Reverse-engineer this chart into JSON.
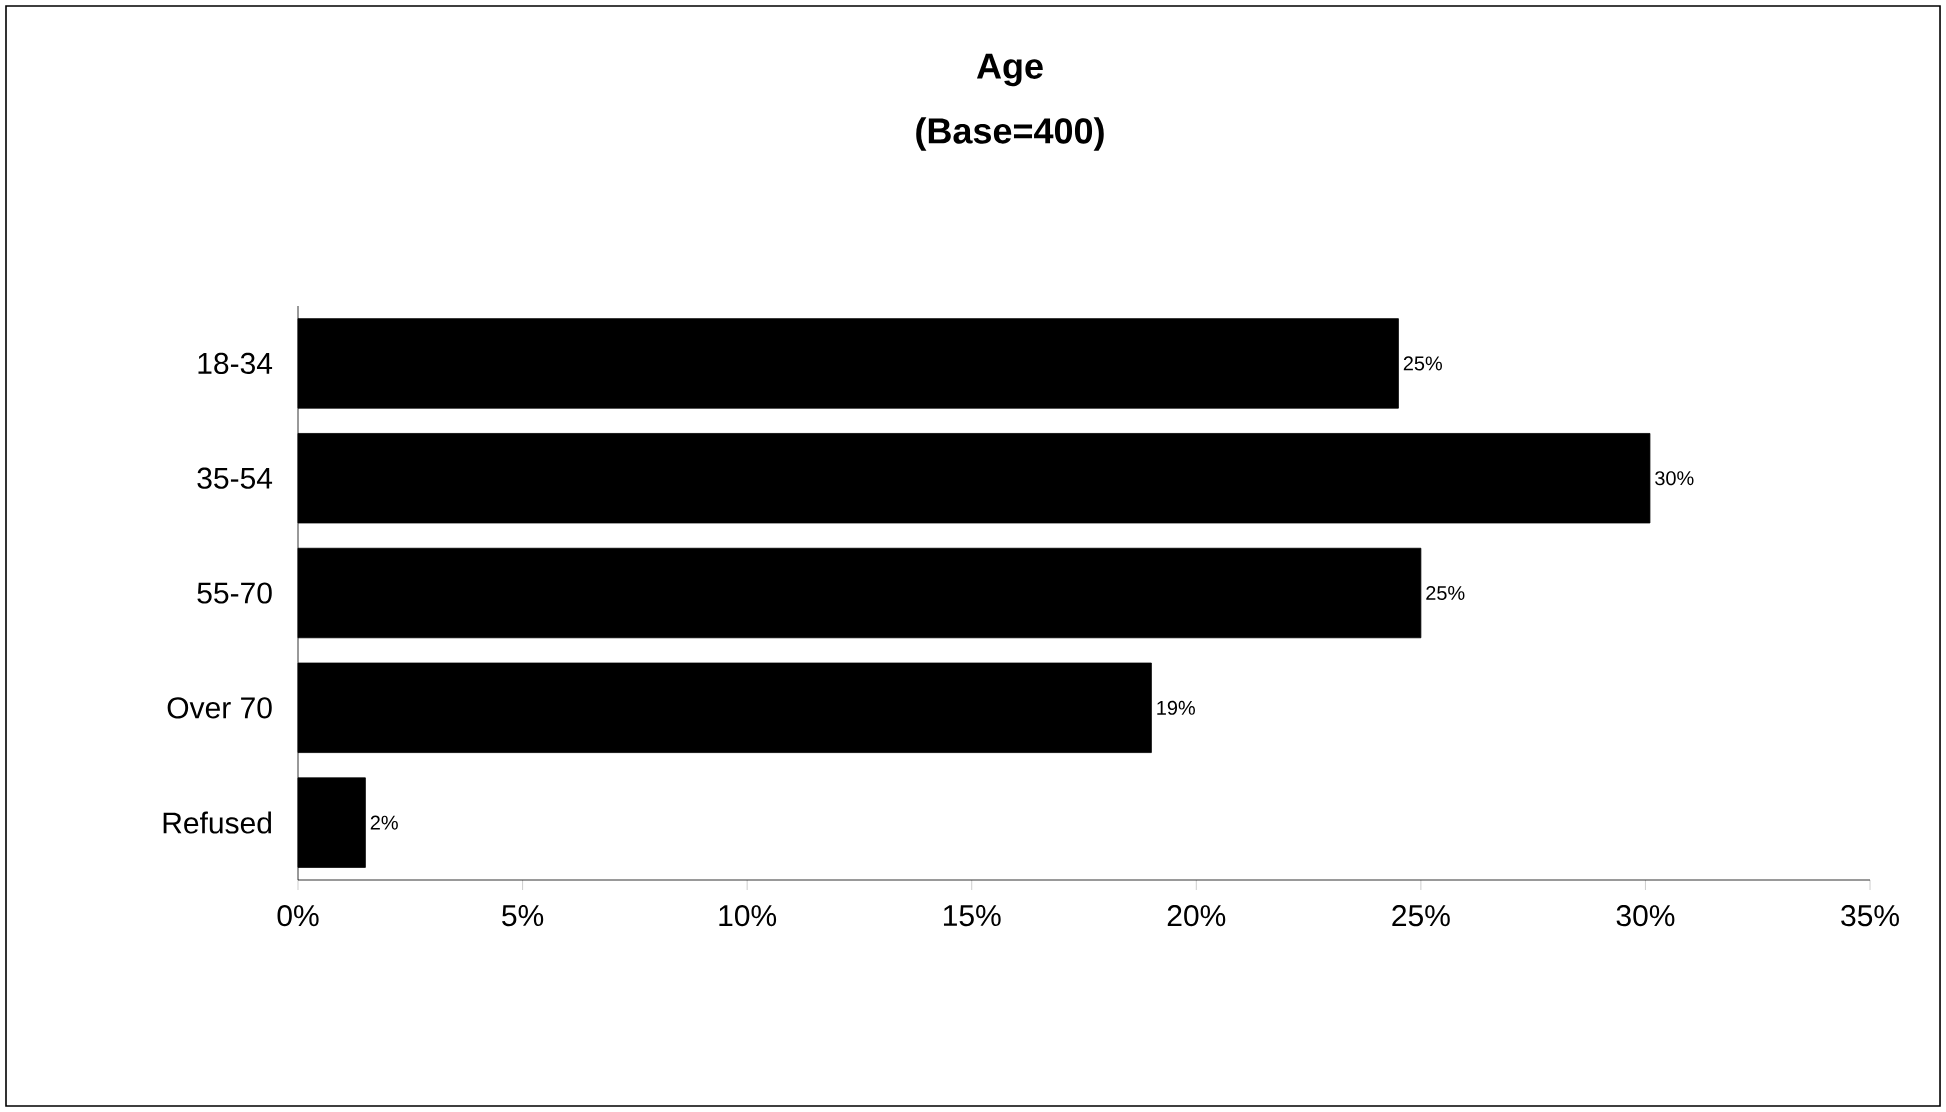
{
  "chart_data": {
    "type": "bar",
    "orientation": "horizontal",
    "title": "Age",
    "subtitle": "(Base=400)",
    "categories": [
      "18-34",
      "35-54",
      "55-70",
      "Over 70",
      "Refused"
    ],
    "values": [
      24.5,
      30.1,
      25.0,
      19.0,
      1.5
    ],
    "value_labels": [
      "25%",
      "30%",
      "25%",
      "19%",
      "2%"
    ],
    "color": "#000000",
    "xlim": [
      0,
      35
    ],
    "xticks": [
      {
        "value": 0,
        "label": "0%"
      },
      {
        "value": 5,
        "label": "5%"
      },
      {
        "value": 10,
        "label": "10%"
      },
      {
        "value": 15,
        "label": "15%"
      },
      {
        "value": 20,
        "label": "20%"
      },
      {
        "value": 25,
        "label": "25%"
      },
      {
        "value": 30,
        "label": "30%"
      },
      {
        "value": 35,
        "label": "35%"
      }
    ]
  }
}
